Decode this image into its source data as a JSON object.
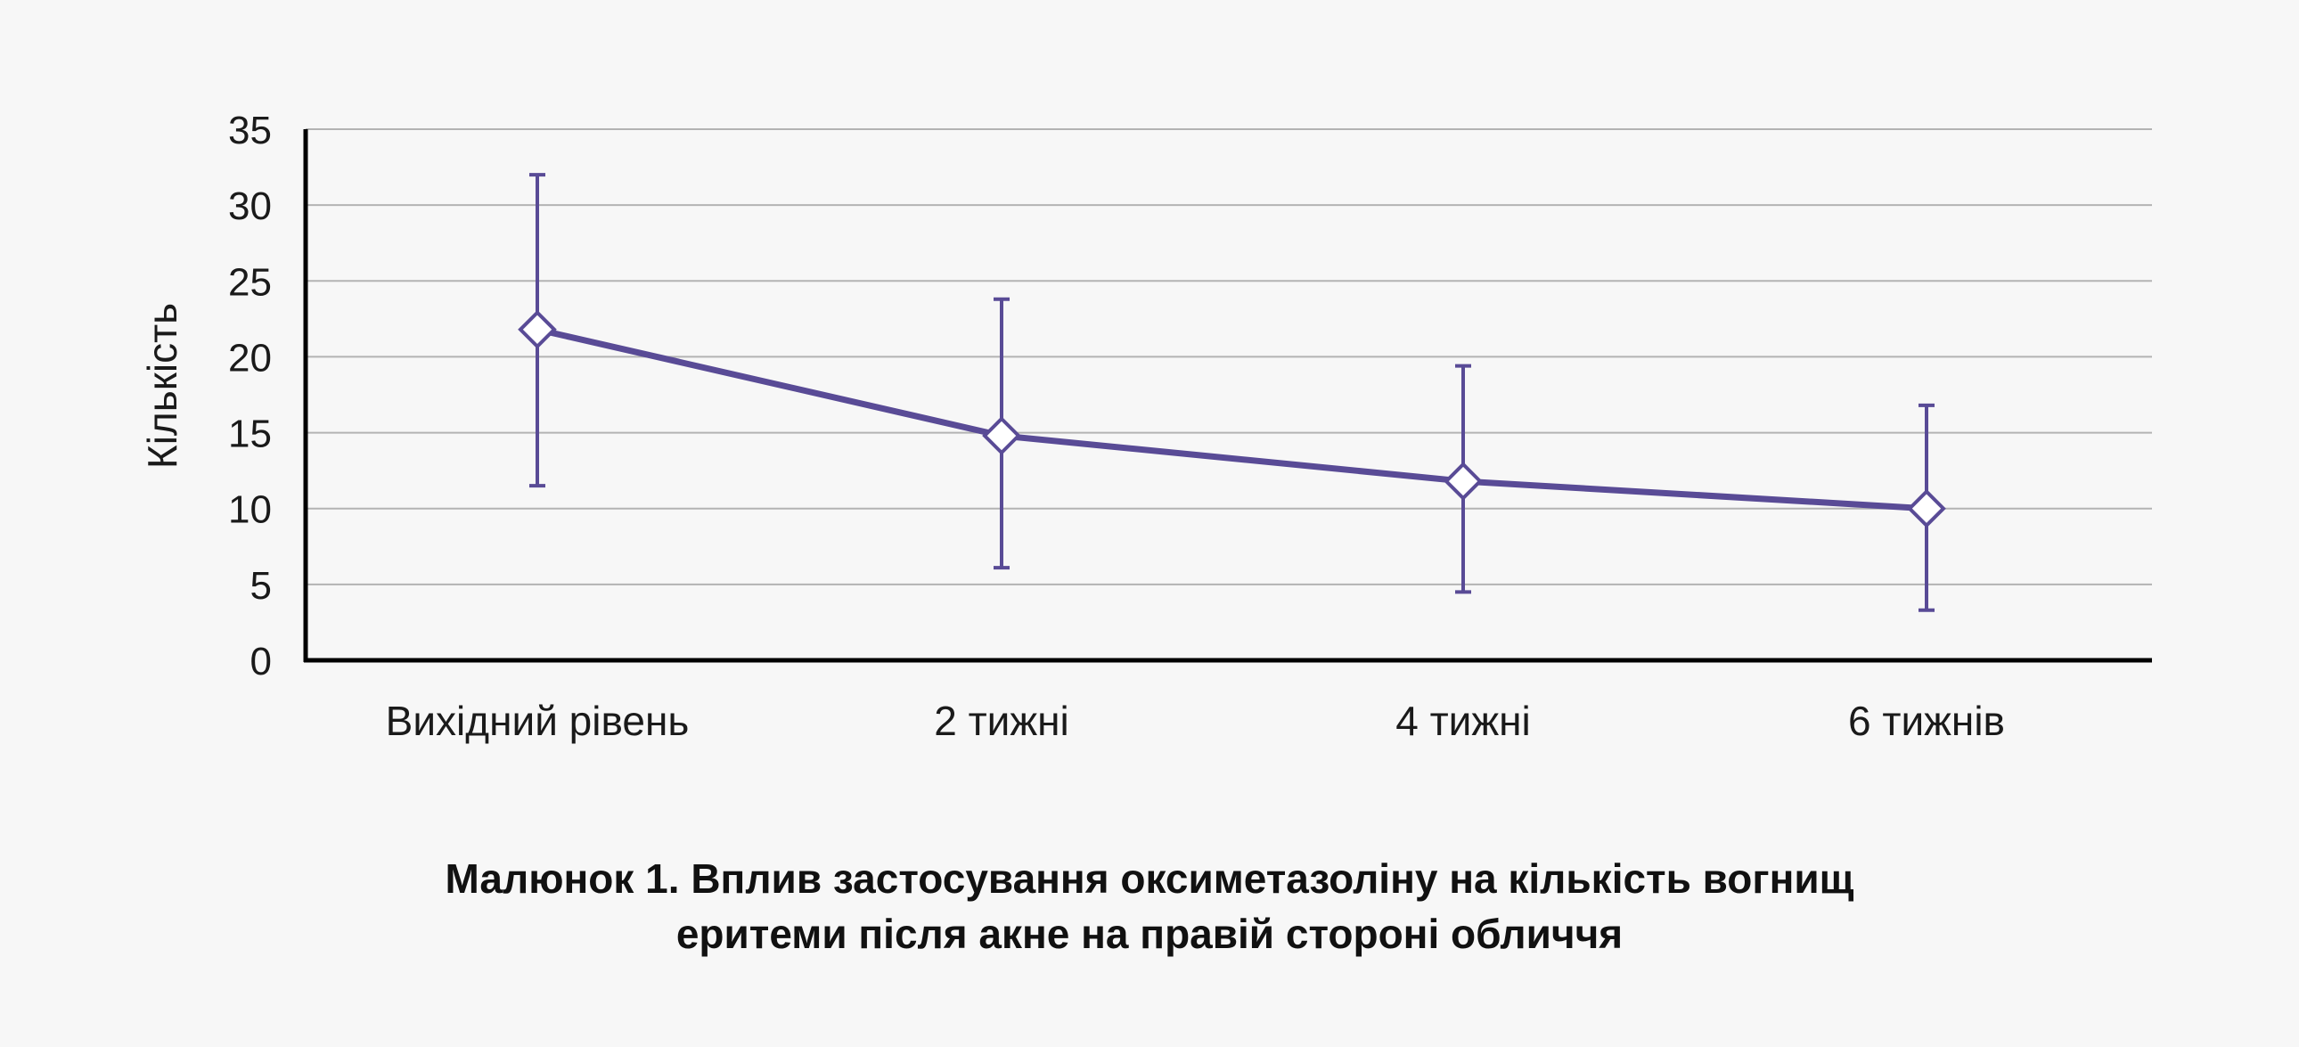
{
  "chart_data": {
    "type": "line",
    "ylabel": "Кількість",
    "xlabel": "",
    "ylim": [
      0,
      35
    ],
    "yticks": [
      0,
      5,
      10,
      15,
      20,
      25,
      30,
      35
    ],
    "ytick_labels": [
      "0",
      "5",
      "10",
      "15",
      "20",
      "25",
      "30",
      "35"
    ],
    "categories": [
      "Вихідний рівень",
      "2 тижні",
      "4 тижні",
      "6 тижнів"
    ],
    "series": [
      {
        "values": [
          21.8,
          14.8,
          11.8,
          10.0
        ],
        "error_low": [
          11.5,
          6.1,
          4.5,
          3.3
        ],
        "error_high": [
          32.0,
          23.8,
          19.4,
          16.8
        ],
        "marker": "diamond-open",
        "color": "#594b96"
      }
    ],
    "grid": true,
    "legend": "none"
  },
  "caption": {
    "line1": "Малюнок 1. Вплив застосування оксиметазоліну на кількість вогнищ",
    "line2": "еритеми після акне на правій стороні обличчя"
  },
  "colors": {
    "series": "#594b96",
    "grid": "#b3b3b3",
    "axis": "#000000",
    "background": "#f7f7f7"
  }
}
